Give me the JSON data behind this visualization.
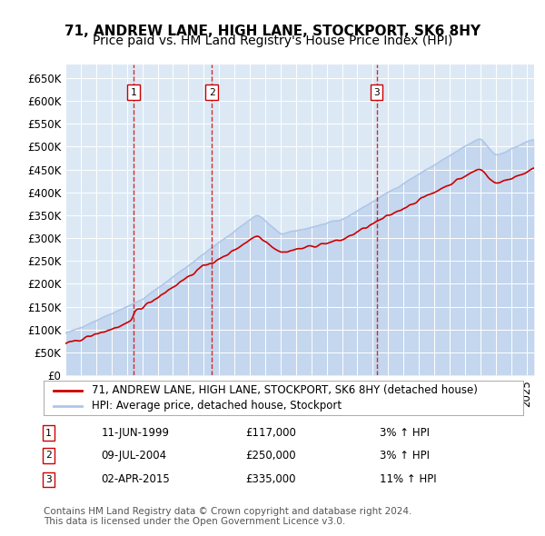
{
  "title": "71, ANDREW LANE, HIGH LANE, STOCKPORT, SK6 8HY",
  "subtitle": "Price paid vs. HM Land Registry's House Price Index (HPI)",
  "ylabel": "",
  "ylim": [
    0,
    680000
  ],
  "yticks": [
    0,
    50000,
    100000,
    150000,
    200000,
    250000,
    300000,
    350000,
    400000,
    450000,
    500000,
    550000,
    600000,
    650000
  ],
  "ytick_labels": [
    "£0",
    "£50K",
    "£100K",
    "£150K",
    "£200K",
    "£250K",
    "£300K",
    "£350K",
    "£400K",
    "£450K",
    "£500K",
    "£550K",
    "£600K",
    "£650K"
  ],
  "xlim_start": 1995.0,
  "xlim_end": 2025.5,
  "sale_dates": [
    1999.44,
    2004.52,
    2015.25
  ],
  "sale_prices": [
    117000,
    250000,
    335000
  ],
  "sale_labels": [
    "1",
    "2",
    "3"
  ],
  "sale_date_strs": [
    "11-JUN-1999",
    "09-JUL-2004",
    "02-APR-2015"
  ],
  "sale_price_strs": [
    "£117,000",
    "£250,000",
    "£335,000"
  ],
  "sale_hpi_strs": [
    "3% ↑ HPI",
    "3% ↑ HPI",
    "11% ↑ HPI"
  ],
  "hpi_color": "#aec6e8",
  "property_color": "#cc0000",
  "sale_line_color": "#cc0000",
  "background_color": "#dce9f5",
  "plot_bg_color": "#dce9f5",
  "legend_label_property": "71, ANDREW LANE, HIGH LANE, STOCKPORT, SK6 8HY (detached house)",
  "legend_label_hpi": "HPI: Average price, detached house, Stockport",
  "footer": "Contains HM Land Registry data © Crown copyright and database right 2024.\nThis data is licensed under the Open Government Licence v3.0.",
  "title_fontsize": 11,
  "subtitle_fontsize": 10,
  "tick_fontsize": 8.5,
  "legend_fontsize": 8.5,
  "footer_fontsize": 7.5
}
